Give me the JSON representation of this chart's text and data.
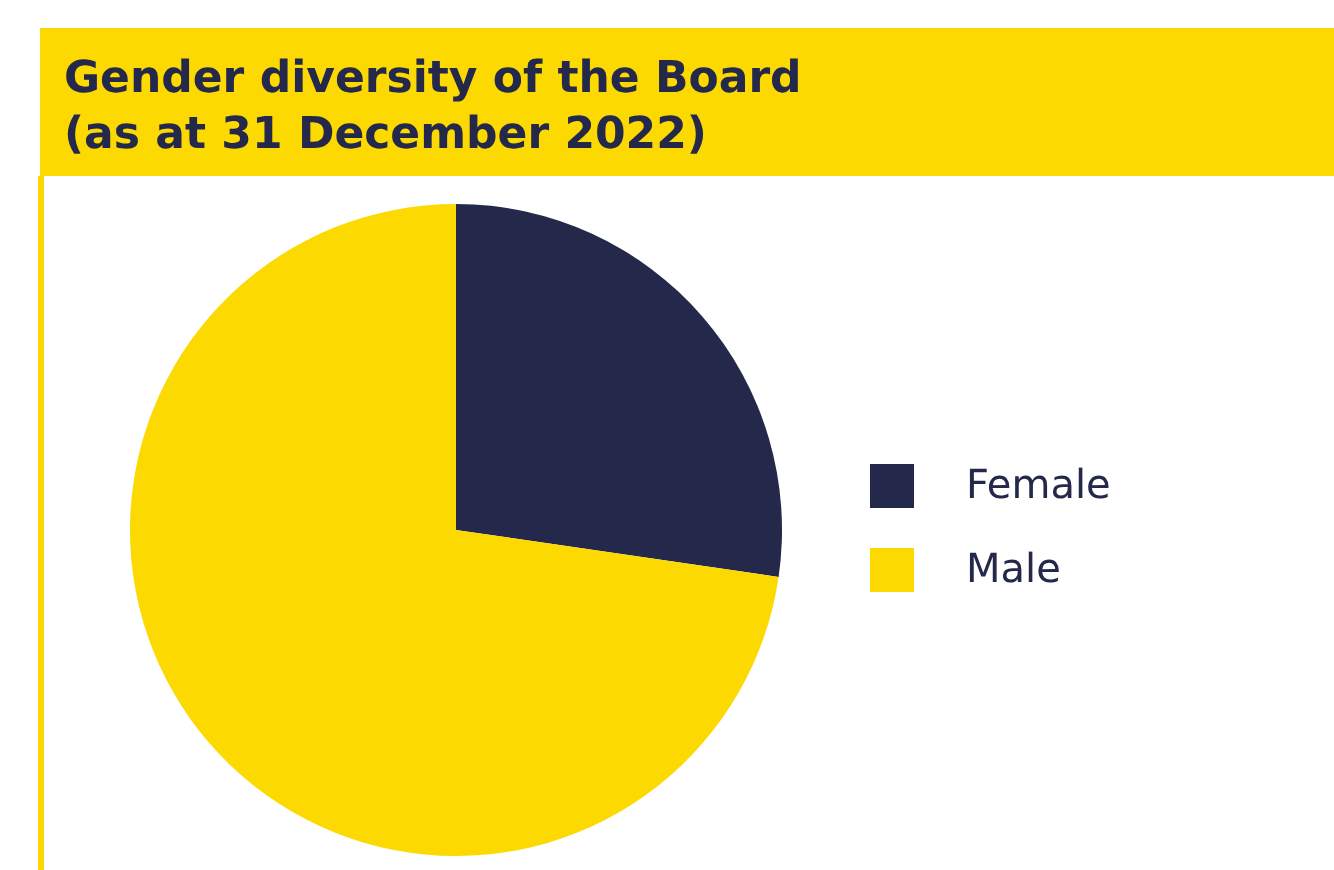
{
  "chart_data": {
    "type": "pie",
    "title": "Gender diversity of the Board",
    "subtitle": "(as at 31 December 2022)",
    "categories": [
      "Female",
      "Male"
    ],
    "values": [
      27.3,
      72.7
    ],
    "colors": [
      "#24284b",
      "#fcd900"
    ],
    "legend": "right"
  }
}
